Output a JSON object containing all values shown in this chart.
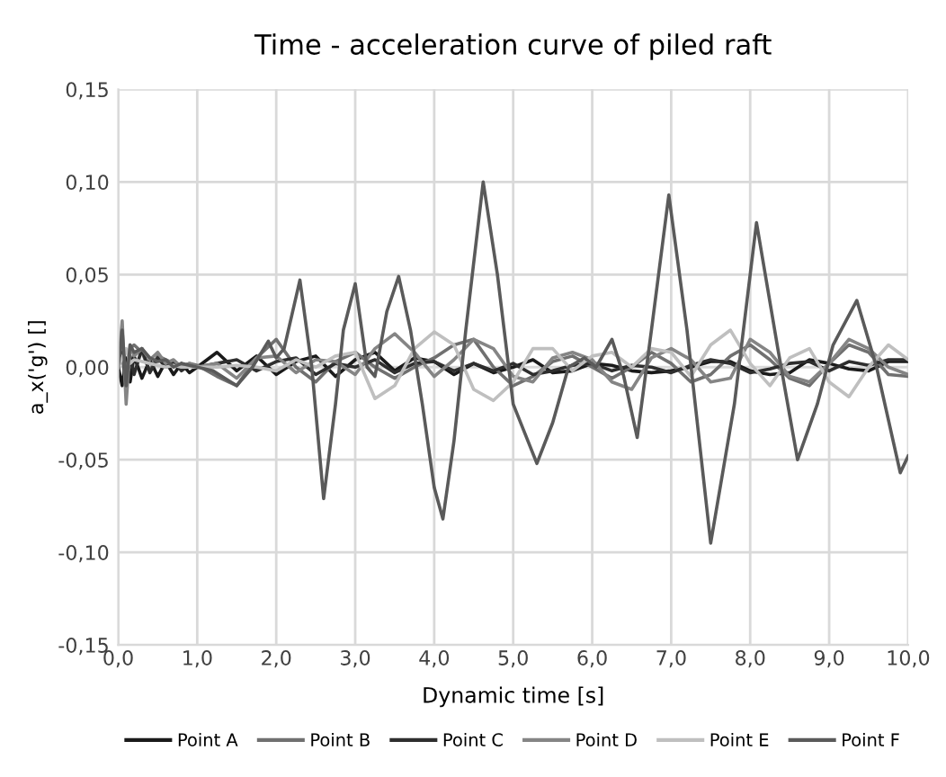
{
  "chart_data": {
    "type": "line",
    "title": "Time - acceleration curve of piled raft",
    "xlabel": "Dynamic time [s]",
    "ylabel": "a_x('g') []",
    "x": [
      0,
      0.05,
      0.1,
      0.15,
      0.2,
      0.3,
      0.4,
      0.5,
      0.6,
      0.7,
      0.8,
      0.9,
      1.0,
      1.25,
      1.5,
      1.75,
      2.0,
      2.25,
      2.5,
      2.75,
      3.0,
      3.25,
      3.5,
      3.75,
      4.0,
      4.25,
      4.5,
      4.75,
      5.0,
      5.25,
      5.5,
      5.75,
      6.0,
      6.25,
      6.5,
      6.75,
      7.0,
      7.25,
      7.5,
      7.75,
      8.0,
      8.25,
      8.5,
      8.75,
      9.0,
      9.25,
      9.5,
      9.75,
      10.0
    ],
    "series": [
      {
        "name": "Point A",
        "color": "#1a1a1a",
        "values": [
          0,
          -0.01,
          0.005,
          -0.008,
          0.006,
          -0.006,
          0.004,
          -0.005,
          0.003,
          -0.004,
          0.002,
          -0.003,
          0.0,
          0.008,
          -0.002,
          0.006,
          -0.004,
          0.003,
          0.006,
          -0.005,
          0.004,
          0.008,
          -0.002,
          0.005,
          0.003,
          -0.004,
          0.002,
          -0.003,
          0.0,
          0.004,
          -0.003,
          -0.002,
          0.002,
          0.001,
          -0.002,
          -0.003,
          -0.002,
          0.0,
          0.003,
          0.003,
          -0.002,
          -0.004,
          -0.003,
          0.004,
          0.002,
          -0.001,
          -0.002,
          0.003,
          0.003
        ]
      },
      {
        "name": "Point B",
        "color": "#707070",
        "values": [
          0,
          0.015,
          -0.005,
          0.01,
          0.012,
          0.008,
          -0.002,
          0.006,
          0.004,
          0.002,
          0.0,
          0.002,
          0.001,
          -0.005,
          -0.01,
          0.005,
          0.015,
          0.0,
          -0.008,
          0.003,
          0.008,
          0.0,
          -0.006,
          0.0,
          0.005,
          0.012,
          0.015,
          0.0,
          -0.01,
          -0.005,
          0.003,
          0.006,
          0.0,
          -0.006,
          0.0,
          0.008,
          0.002,
          -0.008,
          -0.004,
          0.006,
          0.012,
          0.004,
          -0.006,
          -0.01,
          0.002,
          0.012,
          0.008,
          -0.004,
          -0.005
        ]
      },
      {
        "name": "Point C",
        "color": "#2e2e2e",
        "values": [
          0,
          0.008,
          -0.012,
          0.006,
          -0.004,
          0.01,
          -0.003,
          0.005,
          0.0,
          0.003,
          -0.002,
          0.001,
          0.0,
          0.002,
          0.004,
          -0.002,
          0.003,
          0.005,
          -0.004,
          0.002,
          0.0,
          0.004,
          -0.003,
          0.002,
          0.003,
          -0.002,
          0.002,
          -0.002,
          0.002,
          -0.004,
          -0.002,
          0.001,
          0.002,
          -0.002,
          0.001,
          0.0,
          -0.003,
          0.001,
          0.004,
          0.002,
          -0.003,
          -0.001,
          0.002,
          0.003,
          -0.002,
          0.003,
          0.001,
          0.004,
          0.004
        ]
      },
      {
        "name": "Point D",
        "color": "#858585",
        "values": [
          0,
          0.025,
          -0.02,
          0.012,
          0.006,
          0.01,
          0.004,
          0.008,
          0.002,
          0.004,
          0.0,
          0.002,
          0.0,
          0.002,
          -0.006,
          0.005,
          0.006,
          -0.003,
          0.004,
          0.003,
          -0.004,
          0.01,
          0.018,
          0.008,
          -0.005,
          0.004,
          0.015,
          0.01,
          -0.005,
          -0.008,
          0.005,
          0.008,
          0.004,
          -0.008,
          -0.012,
          0.005,
          0.01,
          0.004,
          -0.008,
          -0.006,
          0.015,
          0.008,
          -0.005,
          -0.008,
          0.002,
          0.015,
          0.01,
          0.0,
          -0.004
        ]
      },
      {
        "name": "Point E",
        "color": "#bfbfbf",
        "values": [
          0,
          0.005,
          0.01,
          0.002,
          0.004,
          0.003,
          0.002,
          0.001,
          0.0,
          0.001,
          0.0,
          0.0,
          0.0,
          0.0,
          0.001,
          0.0,
          -0.002,
          0.004,
          0.0,
          0.006,
          0.008,
          -0.017,
          -0.01,
          0.01,
          0.019,
          0.012,
          -0.012,
          -0.018,
          -0.008,
          0.01,
          0.01,
          -0.002,
          0.006,
          0.008,
          0.0,
          0.01,
          0.008,
          -0.005,
          0.012,
          0.02,
          0.002,
          -0.01,
          0.005,
          0.01,
          -0.008,
          -0.016,
          0.0,
          0.012,
          0.004
        ]
      },
      {
        "name": "Point F",
        "color": "#5a5a5a",
        "x": [
          0,
          0.05,
          0.1,
          0.15,
          0.2,
          0.3,
          0.4,
          0.5,
          0.6,
          0.7,
          0.8,
          1.0,
          1.2,
          1.5,
          1.7,
          1.9,
          2.0,
          2.1,
          2.3,
          2.45,
          2.6,
          2.75,
          2.85,
          3.0,
          3.15,
          3.25,
          3.4,
          3.55,
          3.7,
          3.85,
          4.0,
          4.11,
          4.25,
          4.4,
          4.62,
          4.8,
          5.0,
          5.3,
          5.5,
          5.7,
          5.9,
          6.05,
          6.25,
          6.4,
          6.57,
          6.75,
          6.97,
          7.2,
          7.5,
          7.8,
          8.08,
          8.35,
          8.6,
          8.85,
          9.05,
          9.35,
          9.6,
          9.9,
          10.0
        ],
        "values": [
          0,
          0.02,
          -0.01,
          0.012,
          0.008,
          0.01,
          0.005,
          0.003,
          0.004,
          0.0,
          0.002,
          0.0,
          -0.002,
          -0.01,
          0.0,
          0.014,
          0.005,
          0.01,
          0.047,
          0.0,
          -0.071,
          -0.02,
          0.02,
          0.045,
          0.0,
          -0.005,
          0.03,
          0.049,
          0.02,
          -0.02,
          -0.065,
          -0.082,
          -0.04,
          0.02,
          0.1,
          0.05,
          -0.02,
          -0.052,
          -0.03,
          0.0,
          0.005,
          0.0,
          0.015,
          -0.005,
          -0.038,
          0.02,
          0.093,
          0.02,
          -0.095,
          -0.02,
          0.078,
          0.01,
          -0.05,
          -0.02,
          0.012,
          0.036,
          0.0,
          -0.057,
          -0.048
        ]
      }
    ],
    "xlim": [
      0,
      10
    ],
    "xticks": [
      {
        "value": 0,
        "label": "0,0"
      },
      {
        "value": 1,
        "label": "1,0"
      },
      {
        "value": 2,
        "label": "2,0"
      },
      {
        "value": 3,
        "label": "3,0"
      },
      {
        "value": 4,
        "label": "4,0"
      },
      {
        "value": 5,
        "label": "5,0"
      },
      {
        "value": 6,
        "label": "6,0"
      },
      {
        "value": 7,
        "label": "7,0"
      },
      {
        "value": 8,
        "label": "8,0"
      },
      {
        "value": 9,
        "label": "9,0"
      },
      {
        "value": 10,
        "label": "10,0"
      }
    ],
    "ylim": [
      -0.15,
      0.15
    ],
    "yticks": [
      {
        "value": -0.15,
        "label": "-0,15"
      },
      {
        "value": -0.1,
        "label": "-0,10"
      },
      {
        "value": -0.05,
        "label": "-0,05"
      },
      {
        "value": 0,
        "label": "0,00"
      },
      {
        "value": 0.05,
        "label": "0,05"
      },
      {
        "value": 0.1,
        "label": "0,10"
      },
      {
        "value": 0.15,
        "label": "0,15"
      }
    ],
    "grid": true,
    "legend": "bottom",
    "marker": "none",
    "line_style": "solid"
  }
}
